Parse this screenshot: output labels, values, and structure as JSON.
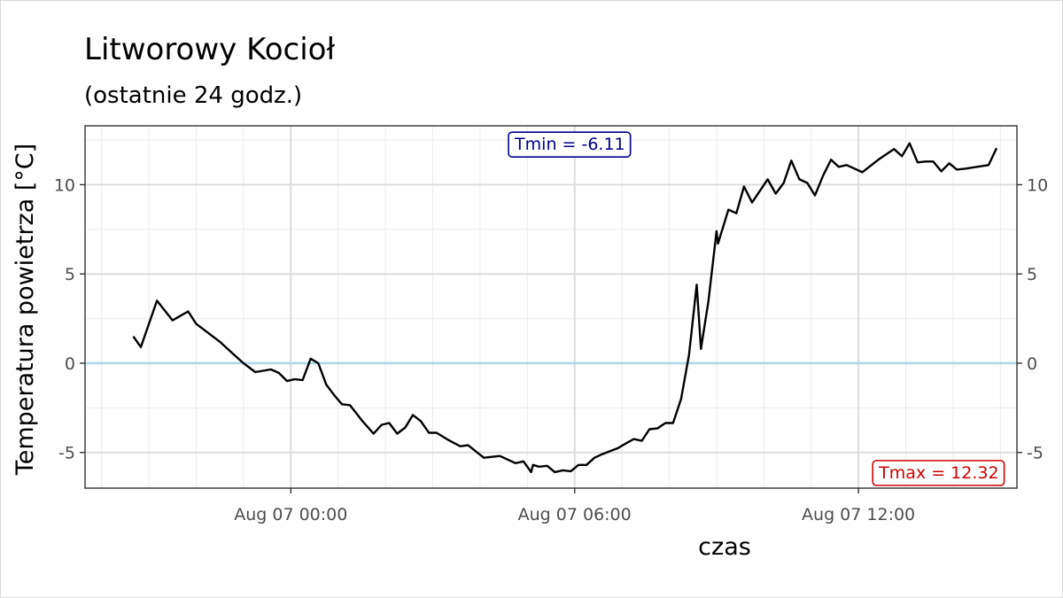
{
  "chart_data": {
    "type": "line",
    "title": "Litworowy Kocioł",
    "subtitle": "(ostatnie 24 godz.)",
    "xlabel": "czas",
    "ylabel": "Temperatura powietrza [°C]",
    "x_ticks": [
      {
        "label": "Aug 07 00:00",
        "hour": 0
      },
      {
        "label": "Aug 07 06:00",
        "hour": 6
      },
      {
        "label": "Aug 07 12:00",
        "hour": 12
      }
    ],
    "y_ticks": [
      -5,
      0,
      5,
      10
    ],
    "xlim_hours": [
      -4.35,
      15.35
    ],
    "ylim": [
      -7.0,
      13.3
    ],
    "grid": true,
    "secondary_y_axis": true,
    "reference_line": {
      "y": 0,
      "color": "#add8e6"
    },
    "annotations": [
      {
        "text": "Tmin = -6.11",
        "color": "#00008b",
        "x_hour": 5.9,
        "y": 12.3
      },
      {
        "text": "Tmax = 12.32",
        "color": "#cc0000",
        "x_hour": 13.7,
        "y": -6.1
      }
    ],
    "series": [
      {
        "color": "#000000",
        "points": [
          [
            -3.33,
            1.5
          ],
          [
            -3.17,
            0.9
          ],
          [
            -2.83,
            3.5
          ],
          [
            -2.5,
            2.4
          ],
          [
            -2.17,
            2.9
          ],
          [
            -2.0,
            2.2
          ],
          [
            -1.5,
            1.2
          ],
          [
            -1.17,
            0.4
          ],
          [
            -1.0,
            0.0
          ],
          [
            -0.75,
            -0.5
          ],
          [
            -0.42,
            -0.35
          ],
          [
            -0.25,
            -0.55
          ],
          [
            -0.08,
            -1.0
          ],
          [
            0.08,
            -0.9
          ],
          [
            0.25,
            -0.95
          ],
          [
            0.42,
            0.25
          ],
          [
            0.58,
            0.0
          ],
          [
            0.75,
            -1.2
          ],
          [
            0.92,
            -1.8
          ],
          [
            1.08,
            -2.3
          ],
          [
            1.25,
            -2.35
          ],
          [
            1.5,
            -3.2
          ],
          [
            1.75,
            -3.95
          ],
          [
            1.92,
            -3.45
          ],
          [
            2.08,
            -3.35
          ],
          [
            2.25,
            -3.95
          ],
          [
            2.42,
            -3.6
          ],
          [
            2.58,
            -2.9
          ],
          [
            2.75,
            -3.25
          ],
          [
            2.92,
            -3.9
          ],
          [
            3.08,
            -3.9
          ],
          [
            3.33,
            -4.3
          ],
          [
            3.58,
            -4.65
          ],
          [
            3.75,
            -4.6
          ],
          [
            4.08,
            -5.3
          ],
          [
            4.42,
            -5.2
          ],
          [
            4.75,
            -5.6
          ],
          [
            4.92,
            -5.5
          ],
          [
            5.08,
            -6.1
          ],
          [
            5.12,
            -5.7
          ],
          [
            5.25,
            -5.8
          ],
          [
            5.42,
            -5.75
          ],
          [
            5.58,
            -6.1
          ],
          [
            5.75,
            -6.0
          ],
          [
            5.92,
            -6.05
          ],
          [
            6.08,
            -5.7
          ],
          [
            6.25,
            -5.7
          ],
          [
            6.42,
            -5.3
          ],
          [
            6.58,
            -5.1
          ],
          [
            6.92,
            -4.75
          ],
          [
            7.08,
            -4.5
          ],
          [
            7.25,
            -4.25
          ],
          [
            7.42,
            -4.35
          ],
          [
            7.58,
            -3.7
          ],
          [
            7.75,
            -3.65
          ],
          [
            7.92,
            -3.35
          ],
          [
            8.08,
            -3.35
          ],
          [
            8.25,
            -2.0
          ],
          [
            8.42,
            0.5
          ],
          [
            8.58,
            4.4
          ],
          [
            8.67,
            0.8
          ],
          [
            8.83,
            3.5
          ],
          [
            9.0,
            7.4
          ],
          [
            9.03,
            6.7
          ],
          [
            9.25,
            8.6
          ],
          [
            9.42,
            8.4
          ],
          [
            9.58,
            9.9
          ],
          [
            9.75,
            9.0
          ],
          [
            10.08,
            10.3
          ],
          [
            10.25,
            9.5
          ],
          [
            10.42,
            10.1
          ],
          [
            10.58,
            11.35
          ],
          [
            10.75,
            10.3
          ],
          [
            10.92,
            10.1
          ],
          [
            11.08,
            9.4
          ],
          [
            11.25,
            10.5
          ],
          [
            11.42,
            11.4
          ],
          [
            11.58,
            11.0
          ],
          [
            11.75,
            11.1
          ],
          [
            12.08,
            10.7
          ],
          [
            12.42,
            11.4
          ],
          [
            12.75,
            12.0
          ],
          [
            12.92,
            11.6
          ],
          [
            13.08,
            12.32
          ],
          [
            13.25,
            11.25
          ],
          [
            13.42,
            11.3
          ],
          [
            13.58,
            11.3
          ],
          [
            13.75,
            10.75
          ],
          [
            13.92,
            11.2
          ],
          [
            14.08,
            10.85
          ],
          [
            14.25,
            10.9
          ],
          [
            14.75,
            11.1
          ],
          [
            14.92,
            12.05
          ]
        ]
      }
    ]
  }
}
